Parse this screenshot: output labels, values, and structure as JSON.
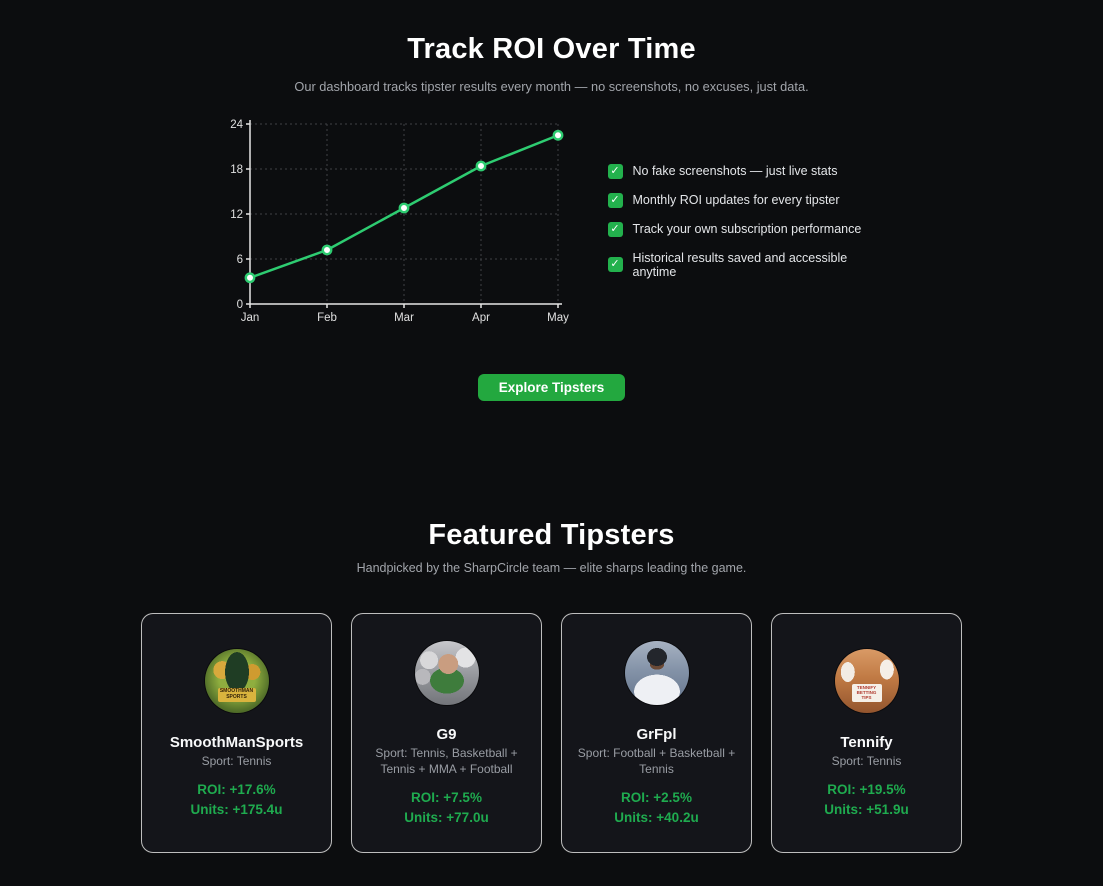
{
  "colors": {
    "page_bg": "#0c0d0f",
    "card_bg": "#14151a",
    "card_border": "#dcdcdc",
    "accent_line": "#2ecc71",
    "accent_button": "#23a83f",
    "accent_stat": "#1fab4f",
    "accent_check": "#23b14d",
    "text_primary": "#f5f6f7",
    "text_muted": "#a2a5ab"
  },
  "icons": {
    "check": "✓"
  },
  "roi_section": {
    "title": "Track ROI Over Time",
    "subtitle": "Our dashboard tracks tipster results every month — no screenshots, no excuses, just data.",
    "features": [
      "No fake screenshots — just live stats",
      "Monthly ROI updates for every tipster",
      "Track your own subscription performance",
      "Historical results saved and accessible anytime"
    ],
    "cta_label": "Explore Tipsters"
  },
  "chart_data": {
    "type": "line",
    "title": "",
    "xlabel": "",
    "ylabel": "",
    "x": [
      "Jan",
      "Feb",
      "Mar",
      "Apr",
      "May"
    ],
    "series": [
      {
        "name": "ROI",
        "values": [
          3.5,
          7.2,
          12.8,
          18.4,
          22.5
        ]
      }
    ],
    "ylim": [
      0,
      24
    ],
    "yticks": [
      0,
      6,
      12,
      18,
      24
    ],
    "grid": true,
    "legend": false,
    "line_color": "#2ecc71",
    "point_fill": "#ffffff",
    "axis_color": "#e6e6e6",
    "grid_color": "#3f4144",
    "tick_label_color": "#e0e0e0"
  },
  "featured_section": {
    "title": "Featured Tipsters",
    "subtitle": "Handpicked by the SharpCircle team — elite sharps leading the game.",
    "tipsters": [
      {
        "name": "SmoothManSports",
        "sport": "Sport: Tennis",
        "roi": "ROI: +17.6%",
        "units": "Units: +175.4u",
        "avatar_text": "SMOOTHMAN SPORTS"
      },
      {
        "name": "G9",
        "sport": "Sport: Tennis, Basketball + Tennis + MMA + Football",
        "roi": "ROI: +7.5%",
        "units": "Units: +77.0u",
        "avatar_text": ""
      },
      {
        "name": "GrFpl",
        "sport": "Sport: Football + Basketball + Tennis",
        "roi": "ROI: +2.5%",
        "units": "Units: +40.2u",
        "avatar_text": ""
      },
      {
        "name": "Tennify",
        "sport": "Sport: Tennis",
        "roi": "ROI: +19.5%",
        "units": "Units: +51.9u",
        "avatar_text": "TENNIFY BETTING TIPS"
      }
    ]
  }
}
